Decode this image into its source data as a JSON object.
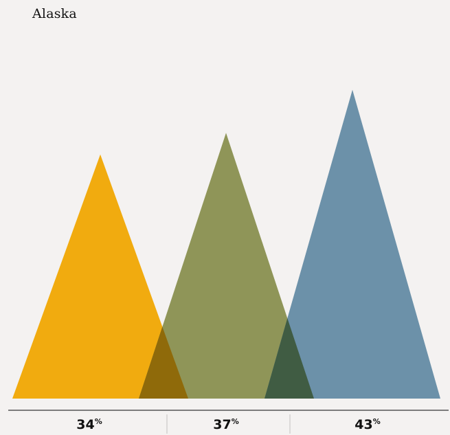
{
  "chart_data": {
    "type": "area",
    "title": "Alaska",
    "categories": [
      "34%",
      "37%",
      "43%"
    ],
    "values": [
      34,
      37,
      43
    ],
    "unit": "%",
    "series_colors": [
      "#f1ab0f",
      "#8f9558",
      "#6c91a9"
    ],
    "overlap_colors": [
      "#8f6a0a",
      "#405c43"
    ],
    "background": "#f4f2f1"
  }
}
